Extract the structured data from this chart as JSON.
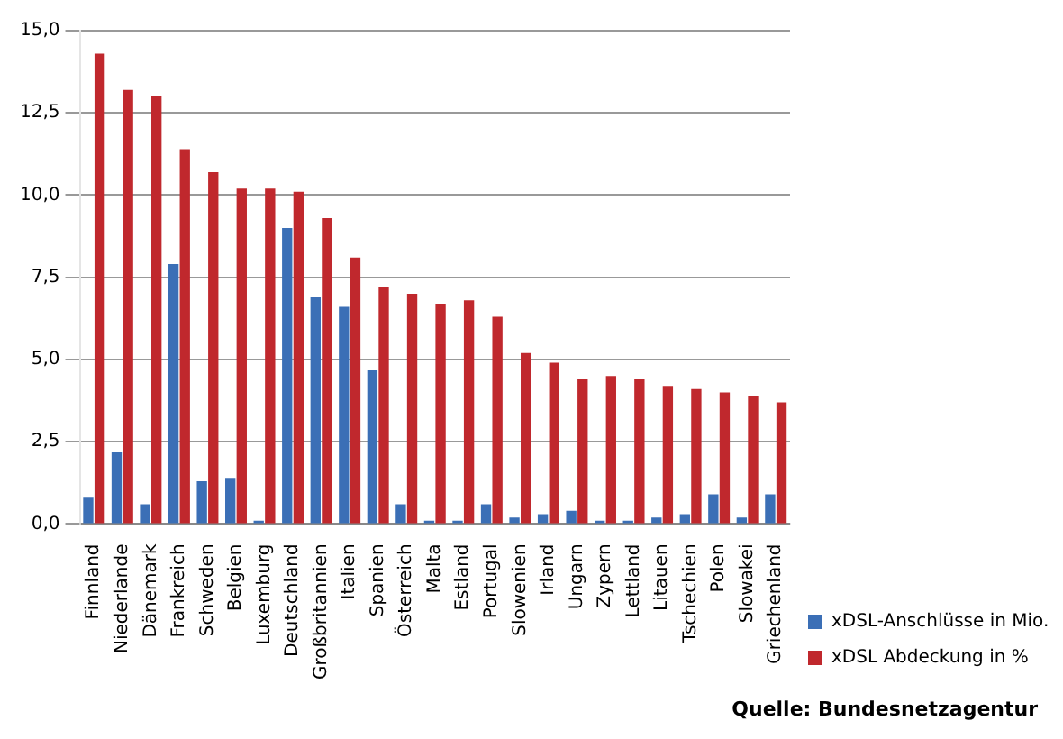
{
  "chart_data": {
    "type": "bar",
    "categories": [
      "Finnland",
      "Niederlande",
      "Dänemark",
      "Frankreich",
      "Schweden",
      "Belgien",
      "Luxemburg",
      "Deutschland",
      "Großbritannien",
      "Italien",
      "Spanien",
      "Österreich",
      "Malta",
      "Estland",
      "Portugal",
      "Slowenien",
      "Irland",
      "Ungarn",
      "Zypern",
      "Lettland",
      "Litauen",
      "Tschechien",
      "Polen",
      "Slowakei",
      "Griechenland"
    ],
    "series": [
      {
        "name": "xDSL-Anschlüsse in Mio.",
        "color": "#3b6fb6",
        "values": [
          0.8,
          2.2,
          0.6,
          7.9,
          1.3,
          1.4,
          0.1,
          9.0,
          6.9,
          6.6,
          4.7,
          0.6,
          0.1,
          0.1,
          0.6,
          0.2,
          0.3,
          0.4,
          0.1,
          0.1,
          0.2,
          0.3,
          0.9,
          0.2,
          0.9
        ]
      },
      {
        "name": "xDSL Abdeckung in %",
        "color": "#c0282d",
        "values": [
          14.3,
          13.2,
          13.0,
          11.4,
          10.7,
          10.2,
          10.2,
          10.1,
          9.3,
          8.1,
          7.2,
          7.0,
          6.7,
          6.8,
          6.3,
          5.2,
          4.9,
          4.4,
          4.5,
          4.4,
          4.2,
          4.1,
          4.0,
          3.9,
          3.7
        ]
      }
    ],
    "ylim": [
      0,
      15
    ],
    "yticks": [
      {
        "value": 0,
        "label": "0,0"
      },
      {
        "value": 2.5,
        "label": "2,5"
      },
      {
        "value": 5,
        "label": "5,0"
      },
      {
        "value": 7.5,
        "label": "7,5"
      },
      {
        "value": 10,
        "label": "10,0"
      },
      {
        "value": 12.5,
        "label": "12,5"
      },
      {
        "value": 15,
        "label": "15,0"
      }
    ],
    "grid": "y",
    "legend": "right",
    "annotations": [
      "Quelle: Bundesnetzagentur"
    ]
  }
}
